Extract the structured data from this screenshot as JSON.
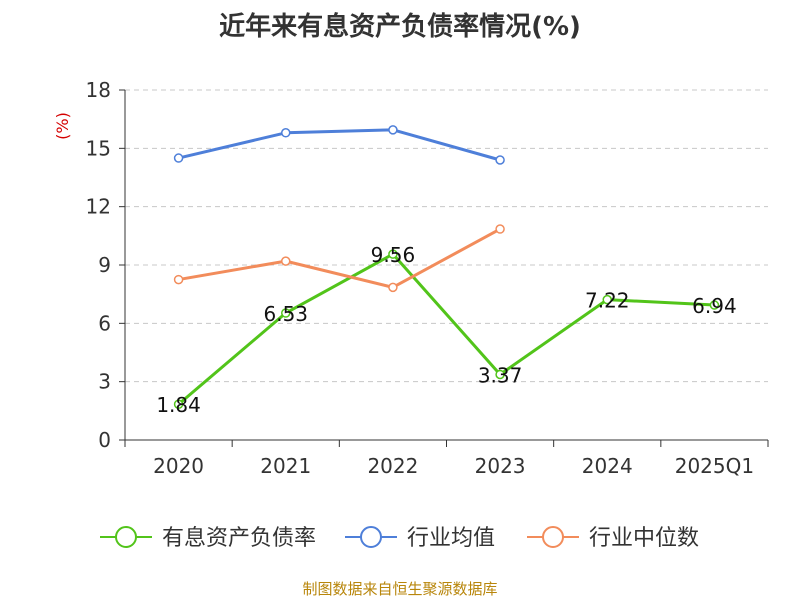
{
  "title": "近年来有息资产负债率情况(%)",
  "source": "制图数据来自恒生聚源数据库",
  "chart_data": {
    "type": "line",
    "title": "近年来有息资产负债率情况(%)",
    "ylabel": "(%)",
    "ylim": [
      0,
      18
    ],
    "yticks": [
      0,
      3,
      6,
      9,
      12,
      15,
      18
    ],
    "categories": [
      "2020",
      "2021",
      "2022",
      "2023",
      "2024",
      "2025Q1"
    ],
    "grid": true,
    "legend_position": "bottom",
    "series": [
      {
        "name": "有息资产负债率",
        "color": "#52c41a",
        "values": [
          1.84,
          6.53,
          9.56,
          3.37,
          7.22,
          6.94
        ],
        "labels_shown": true
      },
      {
        "name": "行业均值",
        "color": "#4e7fd9",
        "values": [
          14.5,
          15.8,
          15.95,
          14.4,
          null,
          null
        ],
        "labels_shown": false
      },
      {
        "name": "行业中位数",
        "color": "#f28c5b",
        "values": [
          8.25,
          9.2,
          7.85,
          10.85,
          null,
          null
        ],
        "labels_shown": false
      }
    ]
  }
}
